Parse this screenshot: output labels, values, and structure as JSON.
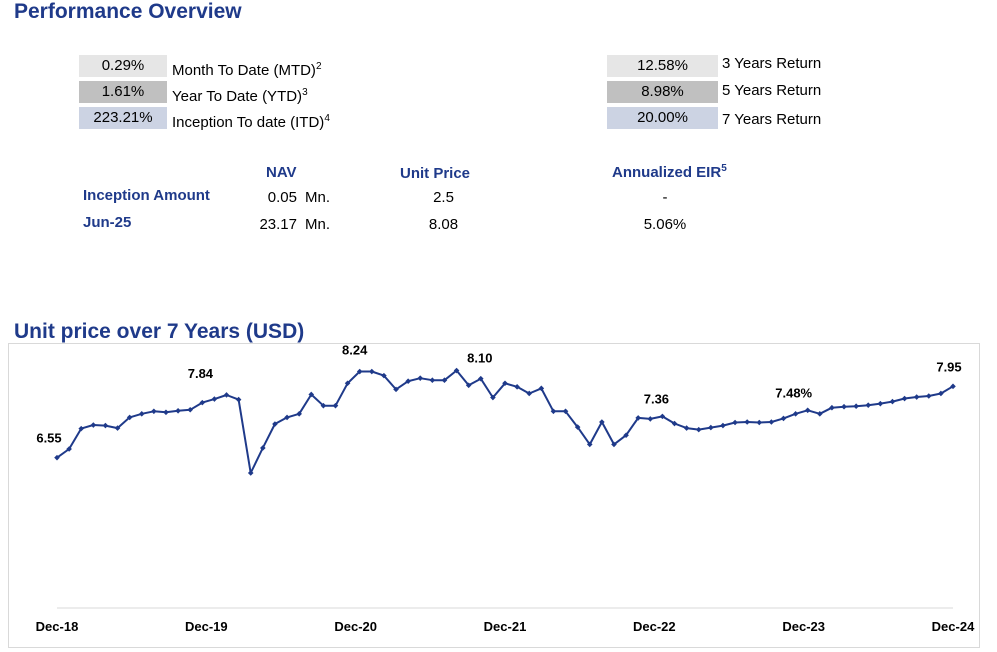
{
  "title": "Performance Overview",
  "returns_left": [
    {
      "value": "0.29%",
      "label": "Month To Date (MTD)",
      "note": "2"
    },
    {
      "value": "1.61%",
      "label": "Year To Date (YTD)",
      "note": "3"
    },
    {
      "value": "223.21%",
      "label": "Inception To date (ITD)",
      "note": "4"
    }
  ],
  "returns_right": [
    {
      "value": "12.58%",
      "label": "3 Years Return"
    },
    {
      "value": "8.98%",
      "label": "5 Years Return"
    },
    {
      "value": "20.00%",
      "label": "7 Years Return"
    }
  ],
  "table": {
    "headers": {
      "nav": "NAV",
      "unit_price": "Unit Price",
      "eir": "Annualized EIR",
      "eir_note": "5"
    },
    "rows": [
      {
        "label": "Inception Amount",
        "nav": "0.05",
        "unit": "Mn.",
        "unit_price": "2.5",
        "eir": "-"
      },
      {
        "label": "Jun-25",
        "nav": "23.17",
        "unit": "Mn.",
        "unit_price": "8.08",
        "eir": "5.06%"
      }
    ]
  },
  "chart_title": "Unit price over 7 Years (USD)",
  "colors": {
    "heading": "#1f3a8a",
    "line": "#1f3a8a"
  },
  "chart_data": {
    "type": "line",
    "title": "Unit price over 7 Years (USD)",
    "x_tick_labels": [
      "Dec-18",
      "Dec-19",
      "Dec-20",
      "Dec-21",
      "Dec-22",
      "Dec-23",
      "Dec-24"
    ],
    "ylim": [
      3.6,
      8.8
    ],
    "grid": false,
    "series": [
      {
        "values": [
          6.55,
          6.72,
          7.12,
          7.19,
          7.18,
          7.13,
          7.34,
          7.41,
          7.46,
          7.44,
          7.47,
          7.49,
          7.63,
          7.7,
          7.78,
          7.69,
          6.25,
          6.74,
          7.21,
          7.34,
          7.41,
          7.79,
          7.57,
          7.57,
          8.01,
          8.24,
          8.24,
          8.16,
          7.89,
          8.05,
          8.11,
          8.07,
          8.07,
          8.26,
          7.97,
          8.1,
          7.73,
          8.01,
          7.94,
          7.81,
          7.91,
          7.46,
          7.46,
          7.15,
          6.81,
          7.25,
          6.81,
          6.99,
          7.33,
          7.31,
          7.36,
          7.22,
          7.13,
          7.1,
          7.14,
          7.18,
          7.24,
          7.25,
          7.24,
          7.25,
          7.32,
          7.41,
          7.48,
          7.41,
          7.53,
          7.55,
          7.56,
          7.58,
          7.61,
          7.65,
          7.71,
          7.74,
          7.76,
          7.81,
          7.95
        ],
        "labeled_points": [
          {
            "label": "6.55",
            "value": 6.55
          },
          {
            "label": "7.84",
            "value": 7.84
          },
          {
            "label": "8.24",
            "value": 8.24
          },
          {
            "label": "8.10",
            "value": 8.1
          },
          {
            "label": "7.36",
            "value": 7.36
          },
          {
            "label": "7.48%",
            "value": 7.48
          },
          {
            "label": "7.95",
            "value": 7.95
          }
        ]
      }
    ]
  }
}
